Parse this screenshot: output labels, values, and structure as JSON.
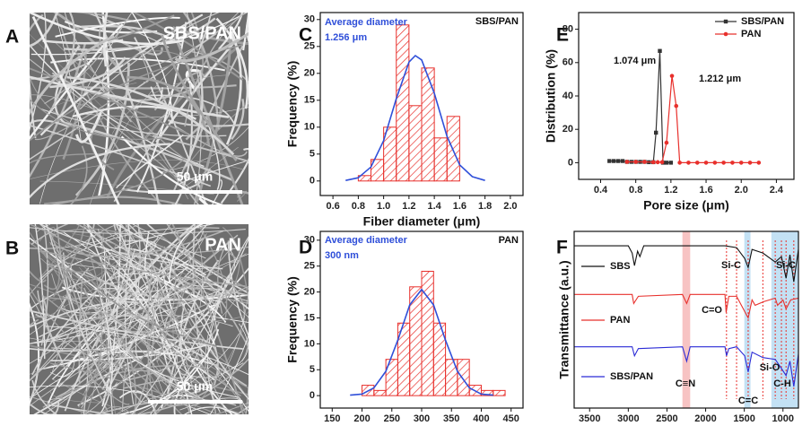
{
  "panels": [
    {
      "label": "A",
      "title": "SBS/PAN",
      "scale": "50 μm"
    },
    {
      "label": "B",
      "title": "PAN",
      "scale": "50 μm"
    }
  ],
  "chart_data": [
    {
      "type": "histogram",
      "label": "C",
      "xlabel": "Fiber diameter (μm)",
      "ylabel": "Frequency (%)",
      "bins": [
        0.8,
        0.9,
        1.0,
        1.1,
        1.2,
        1.3,
        1.4,
        1.5,
        1.6
      ],
      "counts": [
        1,
        4,
        10,
        29,
        14,
        21,
        8,
        12
      ],
      "color": "#e8302c",
      "curve": {
        "color": "#2f4fd9",
        "x": [
          0.7,
          0.8,
          0.9,
          1.0,
          1.1,
          1.2,
          1.25,
          1.3,
          1.4,
          1.5,
          1.6,
          1.7,
          1.8
        ],
        "y": [
          0.1,
          0.6,
          2.6,
          7.5,
          15.3,
          22.1,
          23.3,
          22.5,
          16.3,
          8.3,
          3.0,
          0.8,
          0.1
        ]
      },
      "xlim": [
        0.5,
        2.1
      ],
      "ylim": [
        -2.7,
        31.3
      ],
      "xticks": [
        0.6,
        0.8,
        {
          "value": 1,
          "label": "1.0"
        },
        1.2,
        1.4,
        1.6,
        1.8,
        {
          "value": 2,
          "label": "2.0"
        }
      ],
      "yticks": [
        0,
        5,
        10,
        15,
        20,
        25,
        30
      ],
      "annotations": [
        {
          "text": "Average diameter",
          "color": "#2f4fd9"
        },
        {
          "text": "1.256 μm",
          "color": "#2f4fd9"
        },
        {
          "text": "SBS/PAN",
          "color": "#111111"
        }
      ]
    },
    {
      "type": "histogram",
      "label": "D",
      "xlabel": "Fiber diameter (nm)",
      "ylabel": "Frequency (%)",
      "bins": [
        200,
        220,
        240,
        260,
        280,
        300,
        320,
        340,
        360,
        380,
        400,
        420,
        440
      ],
      "counts": [
        2,
        1,
        7,
        14,
        21,
        24,
        14,
        7,
        7,
        2,
        1,
        1
      ],
      "color": "#e8302c",
      "curve": {
        "color": "#2f4fd9",
        "x": [
          180,
          200,
          220,
          240,
          260,
          280,
          300,
          320,
          340,
          360,
          380,
          400,
          420
        ],
        "y": [
          0.1,
          0.3,
          1.5,
          4.7,
          10.7,
          17.5,
          20.5,
          17.5,
          10.7,
          4.7,
          1.5,
          0.3,
          0.1
        ]
      },
      "xlim": [
        130,
        470
      ],
      "ylim": [
        -2.4,
        31.7
      ],
      "xticks": [
        150,
        200,
        250,
        300,
        350,
        400,
        450
      ],
      "yticks": [
        0,
        5,
        10,
        15,
        20,
        25,
        30
      ],
      "annotations": [
        {
          "text": "Average diameter",
          "color": "#2f4fd9"
        },
        {
          "text": "300 nm",
          "color": "#2f4fd9"
        },
        {
          "text": "PAN",
          "color": "#111111"
        }
      ]
    },
    {
      "type": "line",
      "label": "E",
      "xlabel": "Pore size (μm)",
      "ylabel": "Distribution (%)",
      "xlim": [
        0.15,
        2.6
      ],
      "ylim": [
        -10,
        90
      ],
      "xticks": [
        0.4,
        0.8,
        1.2,
        1.6,
        {
          "value": 2,
          "label": "2.0"
        },
        2.4
      ],
      "yticks": [
        0,
        20,
        40,
        60,
        80
      ],
      "legend": "top-right",
      "series": [
        {
          "name": "SBS/PAN",
          "color": "#333333",
          "marker": "square",
          "x": [
            0.5,
            0.55,
            0.6,
            0.65,
            0.7,
            0.75,
            0.8,
            0.85,
            0.9,
            0.95,
            1.0,
            1.03,
            1.074,
            1.11,
            1.15,
            1.2
          ],
          "values": [
            1,
            1,
            1,
            1,
            0.5,
            0.5,
            0.5,
            0.5,
            0.5,
            0.3,
            0.3,
            18,
            67,
            0,
            0,
            0
          ]
        },
        {
          "name": "PAN",
          "color": "#e8302c",
          "marker": "circle",
          "x": [
            0.7,
            0.8,
            0.9,
            1.0,
            1.05,
            1.1,
            1.15,
            1.212,
            1.26,
            1.3,
            1.4,
            1.5,
            1.6,
            1.7,
            1.8,
            1.9,
            2.0,
            2.1,
            2.2
          ],
          "values": [
            0.5,
            0.5,
            0.5,
            0.3,
            0.3,
            0.3,
            12,
            52,
            34,
            0,
            0,
            0,
            0,
            0,
            0,
            0,
            0,
            0,
            0
          ]
        }
      ],
      "annotations": [
        {
          "text": "1.074 μm",
          "color": "#111111"
        },
        {
          "text": "1.212 μm",
          "color": "#111111"
        }
      ]
    },
    {
      "type": "spectrum",
      "label": "F",
      "xlabel": "Wavenumbers (cm⁻¹)",
      "ylabel": "Transmittance (a.u.)",
      "xlim": [
        3700,
        800
      ],
      "ylim": [
        0,
        9.8
      ],
      "xticks": [
        3500,
        3000,
        2500,
        2000,
        1500,
        1000
      ],
      "series": [
        {
          "name": "SBS",
          "color": "#111111",
          "x": [
            3700,
            3000,
            2950,
            2920,
            2880,
            2850,
            2800,
            1750,
            1600,
            1495,
            1450,
            1400,
            1260,
            1100,
            1020,
            960,
            910,
            860,
            800
          ],
          "values": [
            9.0,
            9.0,
            8.6,
            7.9,
            8.7,
            8.4,
            9.0,
            9.0,
            8.9,
            8.3,
            7.8,
            8.8,
            8.6,
            8.1,
            8.4,
            7.2,
            8.5,
            7.0,
            8.8
          ]
        },
        {
          "name": "PAN",
          "color": "#e8302c",
          "x": [
            3700,
            2950,
            2930,
            2870,
            2300,
            2245,
            2200,
            1750,
            1735,
            1700,
            1600,
            1450,
            1400,
            1360,
            1250,
            1100,
            1070,
            1000,
            960,
            900,
            800
          ],
          "values": [
            6.3,
            6.3,
            5.8,
            6.2,
            6.3,
            5.8,
            6.3,
            6.3,
            5.3,
            6.2,
            6.2,
            5.0,
            6.0,
            5.7,
            5.9,
            6.1,
            5.7,
            6.0,
            5.5,
            6.0,
            6.1
          ]
        },
        {
          "name": "SBS/PAN",
          "color": "#2b2bd6",
          "x": [
            3700,
            2950,
            2920,
            2870,
            2300,
            2245,
            2200,
            1750,
            1730,
            1700,
            1600,
            1495,
            1450,
            1400,
            1260,
            1100,
            1020,
            960,
            910,
            860,
            800
          ],
          "values": [
            3.4,
            3.4,
            2.9,
            3.3,
            3.4,
            2.6,
            3.4,
            3.4,
            2.9,
            3.3,
            3.4,
            2.9,
            2.0,
            3.1,
            2.8,
            2.7,
            2.2,
            1.8,
            2.6,
            1.2,
            3.0
          ]
        }
      ],
      "bands": [
        {
          "from": 2300,
          "to": 2200,
          "color": "#f6b8b8"
        },
        {
          "from": 1500,
          "to": 1420,
          "color": "#b9dcf2"
        },
        {
          "from": 1150,
          "to": 800,
          "color": "#b9dcf2"
        }
      ],
      "markers": [
        1730,
        1600,
        1450,
        1260,
        1100,
        1020,
        960,
        860
      ],
      "marker_color": "#e8302c",
      "annotations": [
        {
          "text": "Si-C",
          "color": "#111111"
        },
        {
          "text": "Si-C",
          "color": "#111111"
        },
        {
          "text": "C=O",
          "color": "#111111"
        },
        {
          "text": "C≡N",
          "color": "#111111"
        },
        {
          "text": "C=C",
          "color": "#111111"
        },
        {
          "text": "Si-O",
          "color": "#111111"
        },
        {
          "text": "C-H",
          "color": "#111111"
        }
      ]
    }
  ]
}
